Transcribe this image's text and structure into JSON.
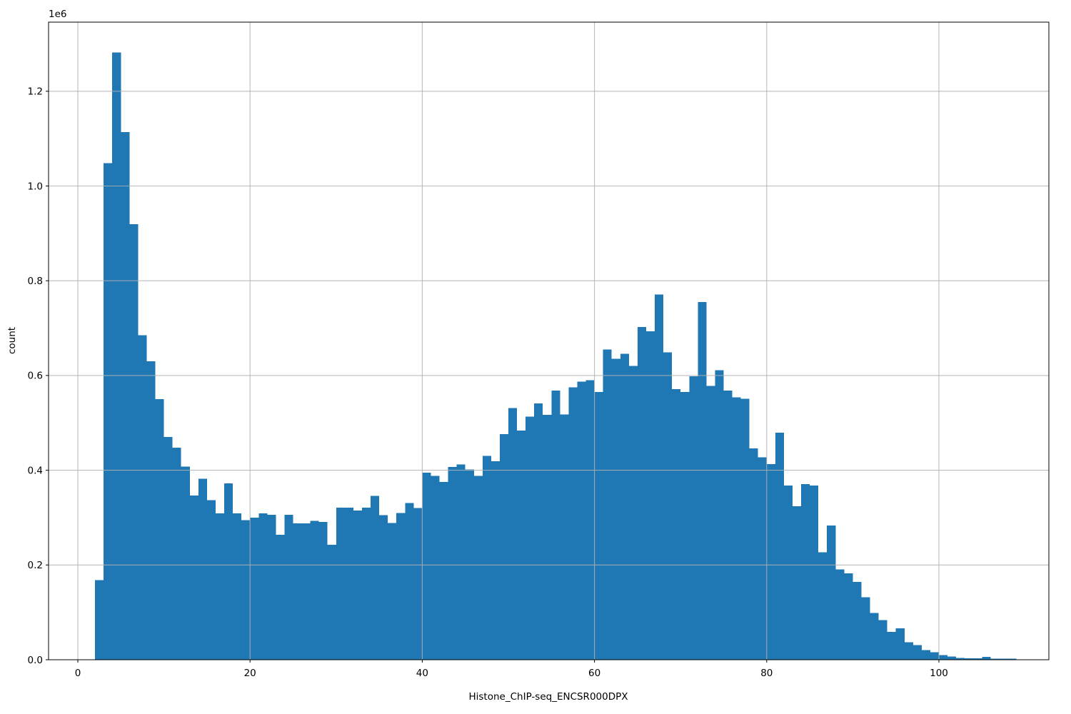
{
  "chart_data": {
    "type": "bar",
    "subtype": "histogram",
    "title": "Histone_ChIP-seq_ENCSR000DPX",
    "xlabel": "Histone_ChIP-seq_ENCSR000DPX",
    "ylabel": "count",
    "y_offset_label": "1e6",
    "legend": "none",
    "grid": "on",
    "x_ticks": [
      0,
      20,
      40,
      60,
      80,
      100
    ],
    "y_ticks": [
      "0.0",
      "0.2",
      "0.4",
      "0.6",
      "0.8",
      "1.0",
      "1.2"
    ],
    "y_tick_values": [
      0,
      200000,
      400000,
      600000,
      800000,
      1000000,
      1200000
    ],
    "xlim": [
      -3.4,
      112.8
    ],
    "ylim": [
      0,
      1346000
    ],
    "bar_color": "#1f77b4",
    "grid_color": "#b0b0b0",
    "spine_color": "#000000",
    "background_color": "#ffffff",
    "bin_width": 1,
    "bin_start": 2,
    "bin_left_edges": [
      2,
      3,
      4,
      5,
      6,
      7,
      8,
      9,
      10,
      11,
      12,
      13,
      14,
      15,
      16,
      17,
      18,
      19,
      20,
      21,
      22,
      23,
      24,
      25,
      26,
      27,
      28,
      29,
      30,
      31,
      32,
      33,
      34,
      35,
      36,
      37,
      38,
      39,
      40,
      41,
      42,
      43,
      44,
      45,
      46,
      47,
      48,
      49,
      50,
      51,
      52,
      53,
      54,
      55,
      56,
      57,
      58,
      59,
      60,
      61,
      62,
      63,
      64,
      65,
      66,
      67,
      68,
      69,
      70,
      71,
      72,
      73,
      74,
      75,
      76,
      77,
      78,
      79,
      80,
      81,
      82,
      83,
      84,
      85,
      86,
      87,
      88,
      89,
      90,
      91,
      92,
      93,
      94,
      95,
      96,
      97,
      98,
      99,
      100,
      101,
      102,
      103,
      104,
      105,
      106,
      107,
      108
    ],
    "counts": [
      168000,
      1048000,
      1282000,
      1114000,
      919000,
      685000,
      630000,
      550000,
      470000,
      448000,
      408000,
      347000,
      382000,
      337000,
      309000,
      372000,
      309000,
      295000,
      300000,
      309000,
      306000,
      264000,
      306000,
      288000,
      288000,
      293000,
      291000,
      243000,
      321000,
      321000,
      315000,
      321000,
      346000,
      305000,
      289000,
      310000,
      331000,
      320000,
      395000,
      388000,
      375000,
      407000,
      412000,
      402000,
      388000,
      430000,
      419000,
      476000,
      531000,
      484000,
      513000,
      541000,
      517000,
      568000,
      518000,
      575000,
      587000,
      590000,
      565000,
      655000,
      635000,
      646000,
      620000,
      702000,
      693000,
      771000,
      649000,
      571000,
      565000,
      598000,
      755000,
      578000,
      611000,
      568000,
      554000,
      551000,
      446000,
      427000,
      413000,
      479000,
      368000,
      324000,
      371000,
      368000,
      227000,
      283000,
      191000,
      182000,
      164000,
      132000,
      99000,
      84000,
      59000,
      66000,
      37000,
      31000,
      20000,
      16000,
      10000,
      6500,
      4000,
      3000,
      3000,
      6000,
      2000,
      2000,
      2000
    ]
  }
}
